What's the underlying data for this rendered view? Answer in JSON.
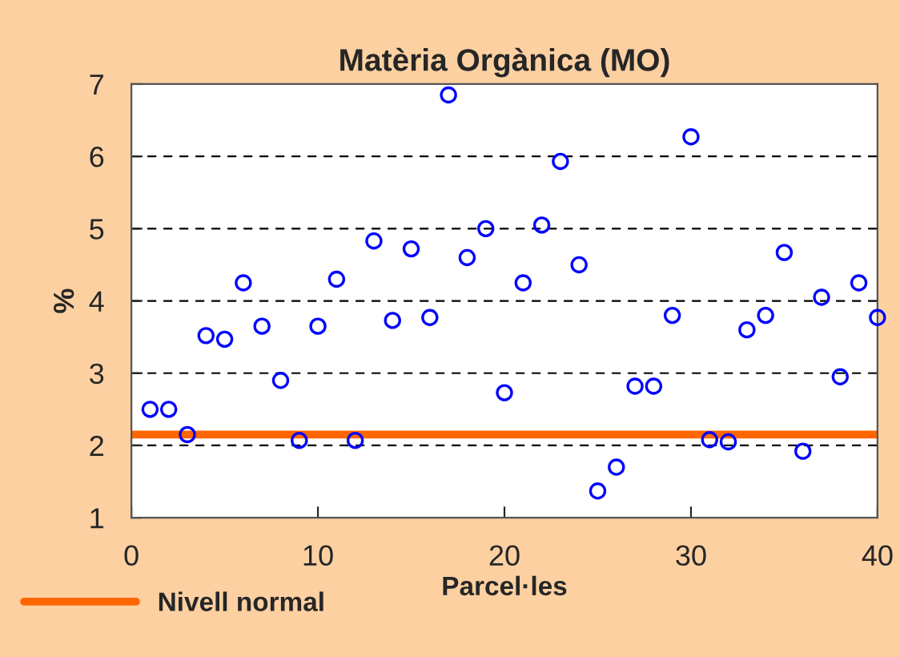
{
  "chart_data": {
    "type": "scatter",
    "title": "Matèria Orgànica (MO)",
    "xlabel": "Parcel·les",
    "ylabel": "%",
    "x": [
      1,
      2,
      3,
      4,
      5,
      6,
      7,
      8,
      9,
      10,
      11,
      12,
      13,
      14,
      15,
      16,
      17,
      18,
      19,
      20,
      21,
      22,
      23,
      24,
      25,
      26,
      27,
      28,
      29,
      30,
      31,
      32,
      33,
      34,
      35,
      36,
      37,
      38,
      39,
      40
    ],
    "series": [
      {
        "color": "#0000ff",
        "values": [
          2.5,
          2.5,
          2.15,
          3.52,
          3.47,
          4.25,
          3.65,
          2.9,
          2.07,
          3.65,
          4.3,
          2.07,
          4.83,
          3.73,
          4.72,
          3.77,
          6.85,
          4.6,
          5.0,
          2.73,
          4.25,
          5.05,
          5.93,
          4.5,
          1.37,
          1.7,
          2.82,
          2.82,
          3.8,
          6.27,
          2.08,
          2.05,
          3.6,
          3.8,
          4.67,
          1.92,
          4.05,
          2.95,
          4.25,
          3.77
        ]
      }
    ],
    "ref_lines": [
      {
        "axis": "y",
        "value": 2.15,
        "label": "Nivell normal",
        "color": "#ff6600"
      }
    ],
    "xlim": [
      0,
      40
    ],
    "xticks": [
      0,
      10,
      20,
      30,
      40
    ],
    "ylim": [
      1,
      7
    ],
    "yticks": [
      1,
      2,
      3,
      4,
      5,
      6,
      7
    ],
    "grid": "y",
    "legend": "bottom left",
    "marker": "circle"
  }
}
